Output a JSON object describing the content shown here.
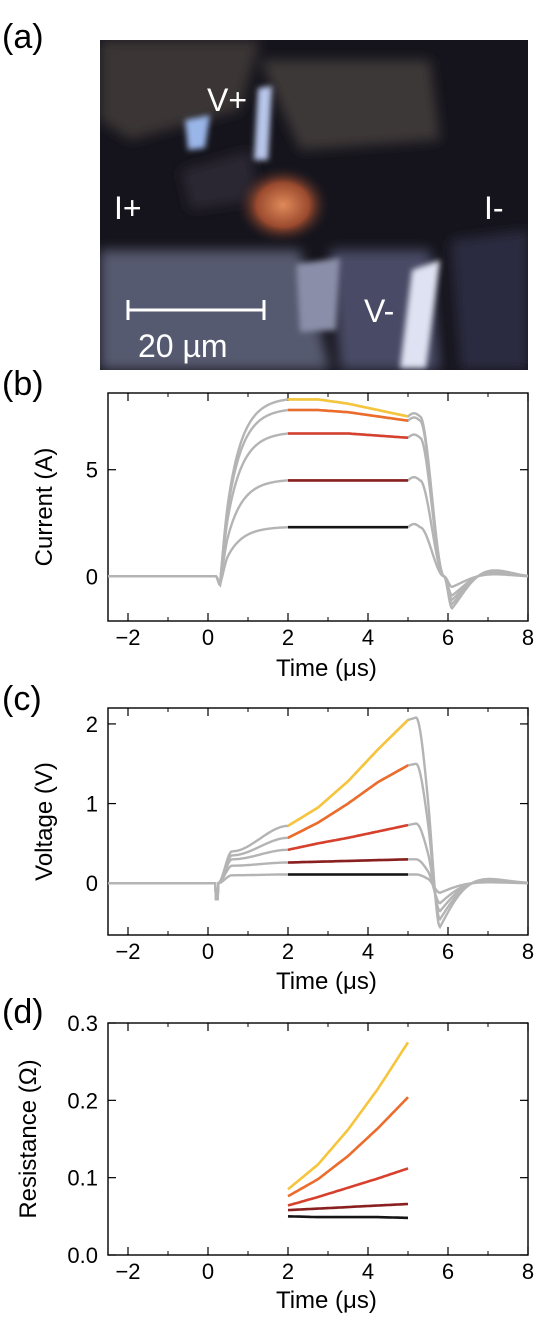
{
  "photo": {
    "panel_label": "(a)",
    "labels": {
      "v_plus": "V+",
      "v_minus": "V-",
      "i_plus": "I+",
      "i_minus": "I-"
    },
    "scale_bar": "20 µm"
  },
  "colors": {
    "gray": "#b4b4b4",
    "series": [
      "#f6c53c",
      "#ec6c2c",
      "#d8402e",
      "#8a1f1f",
      "#151515"
    ]
  },
  "chart_data": [
    {
      "panel_label": "(b)",
      "type": "line",
      "xlabel": "Time (μs)",
      "ylabel": "Current (A)",
      "xlim": [
        -2.5,
        8
      ],
      "ylim": [
        -2.1,
        8.6
      ],
      "xticks": [
        "−2",
        "0",
        "2",
        "4",
        "6",
        "8"
      ],
      "yticks": [
        "0",
        "5"
      ],
      "grid": false,
      "pulse_start": 0.3,
      "pulse_end": 5.3,
      "series": [
        {
          "plateau": [
            8.3,
            8.3,
            8.1,
            7.8,
            7.5
          ],
          "undershoot": -1.5
        },
        {
          "plateau": [
            7.8,
            7.8,
            7.7,
            7.5,
            7.3
          ],
          "undershoot": -1.3
        },
        {
          "plateau": [
            6.7,
            6.7,
            6.7,
            6.6,
            6.5
          ],
          "undershoot": -1.1
        },
        {
          "plateau": [
            4.5,
            4.5,
            4.5,
            4.5,
            4.5
          ],
          "undershoot": -0.9
        },
        {
          "plateau": [
            2.3,
            2.3,
            2.3,
            2.3,
            2.3
          ],
          "undershoot": -0.5
        }
      ],
      "highlight_x": [
        2,
        2.75,
        3.5,
        4.25,
        5
      ]
    },
    {
      "panel_label": "(c)",
      "type": "line",
      "xlabel": "Time (μs)",
      "ylabel": "Voltage (V)",
      "xlim": [
        -2.5,
        8
      ],
      "ylim": [
        -0.65,
        2.2
      ],
      "xticks": [
        "−2",
        "0",
        "2",
        "4",
        "6",
        "8"
      ],
      "yticks": [
        "0",
        "1",
        "2"
      ],
      "grid": false,
      "series": [
        {
          "early": 0.4,
          "at2": 0.72,
          "values": [
            0.72,
            0.95,
            1.28,
            1.68,
            2.05
          ],
          "end": 2.08,
          "undershoot": -0.55
        },
        {
          "early": 0.35,
          "at2": 0.57,
          "values": [
            0.57,
            0.76,
            1.0,
            1.27,
            1.48
          ],
          "end": 1.5,
          "undershoot": -0.45
        },
        {
          "early": 0.3,
          "at2": 0.42,
          "values": [
            0.42,
            0.5,
            0.57,
            0.65,
            0.73
          ],
          "end": 0.75,
          "undershoot": -0.35
        },
        {
          "early": 0.22,
          "at2": 0.26,
          "values": [
            0.26,
            0.27,
            0.28,
            0.29,
            0.3
          ],
          "end": 0.3,
          "undershoot": -0.25
        },
        {
          "early": 0.1,
          "at2": 0.11,
          "values": [
            0.11,
            0.11,
            0.11,
            0.11,
            0.11
          ],
          "end": 0.11,
          "undershoot": -0.12
        }
      ],
      "highlight_x": [
        2,
        2.75,
        3.5,
        4.25,
        5
      ]
    },
    {
      "panel_label": "(d)",
      "type": "line",
      "xlabel": "Time (μs)",
      "ylabel": "Resistance (Ω)",
      "xlim": [
        -2.5,
        8
      ],
      "ylim": [
        0,
        0.3
      ],
      "xticks": [
        "−2",
        "0",
        "2",
        "4",
        "6",
        "8"
      ],
      "yticks": [
        "0.0",
        "0.1",
        "0.2",
        "0.3"
      ],
      "grid": false,
      "x": [
        2,
        2.75,
        3.5,
        4.25,
        5
      ],
      "series": [
        {
          "values": [
            0.085,
            0.117,
            0.162,
            0.215,
            0.275
          ]
        },
        {
          "values": [
            0.076,
            0.098,
            0.128,
            0.164,
            0.204
          ]
        },
        {
          "values": [
            0.064,
            0.075,
            0.087,
            0.099,
            0.112
          ]
        },
        {
          "values": [
            0.058,
            0.06,
            0.062,
            0.064,
            0.066
          ]
        },
        {
          "values": [
            0.05,
            0.049,
            0.049,
            0.049,
            0.048
          ]
        }
      ]
    }
  ]
}
